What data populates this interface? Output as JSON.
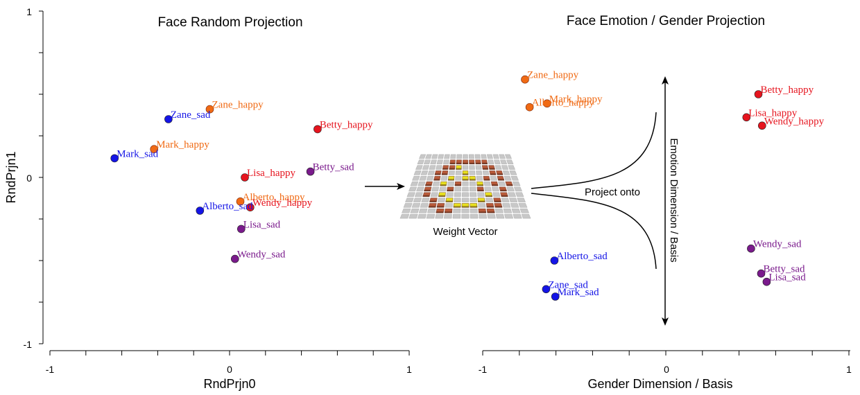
{
  "colors": {
    "sad_male": "#1414e6",
    "happy_male": "#f06a14",
    "happy_female": "#e6141e",
    "sad_female": "#7a1a8c",
    "weight_gray": "#c8c8c8",
    "weight_brown": "#b85a3a",
    "weight_yellow": "#e8e020"
  },
  "chart_data": [
    {
      "type": "scatter",
      "title": "Face Random Projection",
      "xlabel": "RndPrjn0",
      "ylabel": "RndPrjn1",
      "xlim": [
        -1,
        1
      ],
      "ylim": [
        -1,
        1
      ],
      "x_tick_labels": [
        "-1",
        "0",
        "1"
      ],
      "y_tick_labels": [
        "-1",
        "0",
        "1"
      ],
      "grid": false,
      "points": [
        {
          "label": "Zane_happy",
          "x": -0.11,
          "y": 0.41,
          "group": "happy_male"
        },
        {
          "label": "Zane_sad",
          "x": -0.34,
          "y": 0.35,
          "group": "sad_male"
        },
        {
          "label": "Betty_happy",
          "x": 0.49,
          "y": 0.29,
          "group": "happy_female"
        },
        {
          "label": "Mark_happy",
          "x": -0.42,
          "y": 0.17,
          "group": "happy_male"
        },
        {
          "label": "Mark_sad",
          "x": -0.64,
          "y": 0.115,
          "group": "sad_male"
        },
        {
          "label": "Betty_sad",
          "x": 0.45,
          "y": 0.035,
          "group": "sad_female"
        },
        {
          "label": "Lisa_happy",
          "x": 0.085,
          "y": 0.0,
          "group": "happy_female"
        },
        {
          "label": "Alberto_happy",
          "x": 0.06,
          "y": -0.145,
          "group": "happy_male"
        },
        {
          "label": "Wendy_happy",
          "x": 0.115,
          "y": -0.18,
          "group": "happy_female"
        },
        {
          "label": "Alberto_sad",
          "x": -0.165,
          "y": -0.2,
          "group": "sad_male"
        },
        {
          "label": "Lisa_sad",
          "x": 0.065,
          "y": -0.31,
          "group": "sad_female"
        },
        {
          "label": "Wendy_sad",
          "x": 0.03,
          "y": -0.49,
          "group": "sad_female"
        }
      ]
    },
    {
      "type": "scatter",
      "title": "Face Emotion / Gender Projection",
      "xlabel": "Gender Dimension / Basis",
      "ylabel": "",
      "xlim": [
        -1,
        1
      ],
      "ylim": [
        -0.88,
        0.92
      ],
      "x_tick_labels": [
        "-1",
        "0",
        "1"
      ],
      "grid": false,
      "points": [
        {
          "label": "Zane_happy",
          "x": -0.77,
          "y": 0.55,
          "group": "happy_male"
        },
        {
          "label": "Mark_happy",
          "x": -0.65,
          "y": 0.42,
          "group": "happy_male"
        },
        {
          "label": "Alberto_happy",
          "x": -0.745,
          "y": 0.4,
          "group": "happy_male"
        },
        {
          "label": "Betty_happy",
          "x": 0.5,
          "y": 0.47,
          "group": "happy_female"
        },
        {
          "label": "Lisa_happy",
          "x": 0.435,
          "y": 0.345,
          "group": "happy_female"
        },
        {
          "label": "Wendy_happy",
          "x": 0.52,
          "y": 0.3,
          "group": "happy_female"
        },
        {
          "label": "Alberto_sad",
          "x": -0.61,
          "y": -0.43,
          "group": "sad_male"
        },
        {
          "label": "Zane_sad",
          "x": -0.655,
          "y": -0.585,
          "group": "sad_male"
        },
        {
          "label": "Mark_sad",
          "x": -0.605,
          "y": -0.625,
          "group": "sad_male"
        },
        {
          "label": "Wendy_sad",
          "x": 0.46,
          "y": -0.365,
          "group": "sad_female"
        },
        {
          "label": "Betty_sad",
          "x": 0.515,
          "y": -0.5,
          "group": "sad_female"
        },
        {
          "label": "Lisa_sad",
          "x": 0.545,
          "y": -0.545,
          "group": "sad_female"
        }
      ]
    }
  ],
  "diagram": {
    "weight_label": "Weight Vector",
    "project_label": "Project onto",
    "emotion_axis_label": "Emotion Dimension / Basis"
  },
  "weight_grid": {
    "rows": [
      "GGGGGGGGGGGGGGG",
      "GGGGGBBBBBBGGGG",
      "GGGGBBYGGGBBGGG",
      "GGGBBGGYGGGBBGG",
      "GGGBGYGYYGBGBGG",
      "GGBGYGBGGYGBGBG",
      "GGBGGBGGGBGGBGG",
      "GGBGYGGGGGYGBGG",
      "GGGBGYGGGYGBGGG",
      "GGGBBGYYYGBBGGG",
      "GGGGBBGGGBBGGGG",
      "GGGGGGGGGGGGGGG"
    ]
  }
}
